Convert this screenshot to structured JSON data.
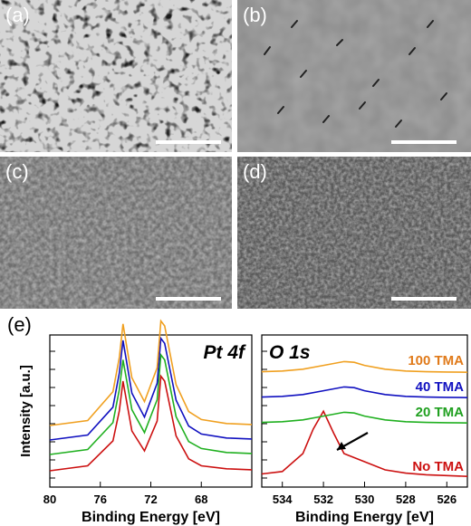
{
  "panels": {
    "a": {
      "label": "(a)"
    },
    "b": {
      "label": "(b)"
    },
    "c": {
      "label": "(c)"
    },
    "d": {
      "label": "(d)"
    },
    "e": {
      "label": "(e)"
    }
  },
  "colors": {
    "100 TMA": "#f0a020",
    "40 TMA": "#1010c0",
    "20 TMA": "#20b020",
    "No TMA": "#cc1010",
    "label_100": "#e07a1a",
    "label_40": "#1010c0",
    "label_20": "#20a020",
    "label_no": "#cc1010"
  },
  "chart_data": [
    {
      "type": "line",
      "title": "Pt 4f",
      "xlabel": "Binding Energy [eV]",
      "ylabel": "Intensity [a.u.]",
      "xlim": [
        80,
        64
      ],
      "x_reversed": true,
      "xticks": [
        "80",
        "76",
        "72",
        "68"
      ],
      "series": [
        {
          "key": "No TMA",
          "x": [
            80,
            77,
            75,
            74.5,
            74.2,
            73.5,
            72.5,
            71.5,
            71.2,
            70.9,
            70,
            69,
            68,
            66,
            64
          ],
          "y": [
            0,
            0.05,
            0.3,
            0.6,
            0.9,
            0.4,
            0.2,
            0.5,
            0.95,
            0.9,
            0.35,
            0.12,
            0.05,
            0.02,
            0.01
          ]
        },
        {
          "key": "20 TMA",
          "x": [
            80,
            77,
            75,
            74.5,
            74.2,
            73.5,
            72.5,
            71.5,
            71.2,
            70.9,
            70,
            69,
            68,
            66,
            64
          ],
          "y": [
            0,
            0.05,
            0.32,
            0.65,
            0.95,
            0.45,
            0.22,
            0.55,
            1.0,
            0.95,
            0.38,
            0.13,
            0.06,
            0.02,
            0.01
          ]
        },
        {
          "key": "40 TMA",
          "x": [
            80,
            77,
            75,
            74.5,
            74.2,
            73.5,
            72.5,
            71.5,
            71.2,
            70.9,
            70,
            69,
            68,
            66,
            64
          ],
          "y": [
            0,
            0.05,
            0.33,
            0.67,
            1.0,
            0.47,
            0.23,
            0.57,
            1.02,
            0.97,
            0.4,
            0.14,
            0.06,
            0.02,
            0.01
          ]
        },
        {
          "key": "100 TMA",
          "x": [
            80,
            77,
            75,
            74.5,
            74.2,
            73.5,
            72.5,
            71.5,
            71.2,
            70.9,
            70,
            69,
            68,
            66,
            64
          ],
          "y": [
            0,
            0.05,
            0.34,
            0.68,
            1.02,
            0.48,
            0.24,
            0.58,
            1.05,
            1.0,
            0.41,
            0.14,
            0.06,
            0.02,
            0.01
          ]
        }
      ]
    },
    {
      "type": "line",
      "title": "O 1s",
      "xlabel": "Binding Energy [eV]",
      "xlim": [
        535,
        525
      ],
      "x_reversed": true,
      "xticks": [
        "534",
        "532",
        "530",
        "528",
        "526"
      ],
      "series": [
        {
          "name": "No TMA",
          "x": [
            535,
            534,
            533,
            532.5,
            532,
            531.5,
            531,
            530,
            529,
            528,
            527,
            526,
            525
          ],
          "y": [
            0.05,
            0.08,
            0.3,
            0.6,
            0.82,
            0.55,
            0.3,
            0.2,
            0.1,
            0.06,
            0.04,
            0.03,
            0.02
          ]
        },
        {
          "name": "20 TMA",
          "x": [
            535,
            534,
            533,
            532,
            531,
            530.5,
            530,
            529,
            528,
            527,
            526,
            525
          ],
          "y": [
            0.05,
            0.08,
            0.15,
            0.3,
            0.45,
            0.42,
            0.3,
            0.15,
            0.08,
            0.05,
            0.04,
            0.03
          ]
        },
        {
          "name": "40 TMA",
          "x": [
            535,
            534,
            533,
            532,
            531,
            530.5,
            530,
            529,
            528,
            527,
            526,
            525
          ],
          "y": [
            0.05,
            0.08,
            0.15,
            0.3,
            0.45,
            0.42,
            0.3,
            0.15,
            0.08,
            0.05,
            0.04,
            0.03
          ]
        },
        {
          "name": "100 TMA",
          "x": [
            535,
            534,
            533,
            532,
            531,
            530.5,
            530,
            529,
            528,
            527,
            526,
            525
          ],
          "y": [
            0.05,
            0.08,
            0.15,
            0.3,
            0.45,
            0.42,
            0.3,
            0.15,
            0.08,
            0.05,
            0.04,
            0.03
          ]
        }
      ],
      "annotations": [
        "arrow to No TMA peak"
      ]
    }
  ]
}
